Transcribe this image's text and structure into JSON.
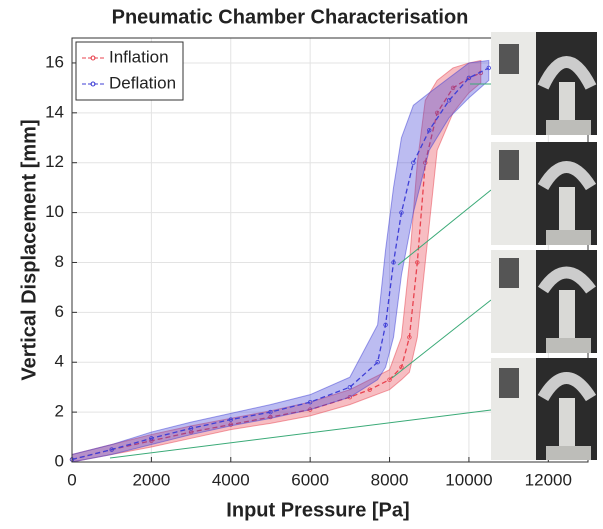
{
  "chart_data": {
    "type": "line",
    "title": "Pneumatic Chamber Characterisation",
    "x_label": "Input Pressure [Pa]",
    "y_label": "Vertical Displacement [mm]",
    "xlim": [
      0,
      13000
    ],
    "xticks": [
      0,
      2000,
      4000,
      6000,
      8000,
      10000,
      12000
    ],
    "ylim": [
      0,
      17
    ],
    "yticks": [
      0,
      2,
      4,
      6,
      8,
      10,
      12,
      14,
      16
    ],
    "grid": true,
    "legend": "upper-left",
    "series": [
      {
        "name": "Inflation",
        "color": "#e8434f",
        "x": [
          0,
          1000,
          2000,
          3000,
          4000,
          5000,
          6000,
          7000,
          7500,
          8000,
          8300,
          8500,
          8700,
          8900,
          9200,
          9600,
          10000,
          10300
        ],
        "values": [
          0.1,
          0.5,
          0.85,
          1.2,
          1.5,
          1.8,
          2.1,
          2.6,
          2.9,
          3.3,
          3.8,
          5,
          8,
          12,
          14,
          15,
          15.4,
          15.6
        ],
        "lower": [
          0,
          0.3,
          0.6,
          0.95,
          1.3,
          1.55,
          1.85,
          2.3,
          2.6,
          2.9,
          3.3,
          3.6,
          5,
          8,
          12.5,
          14,
          14.8,
          15.2
        ],
        "upper": [
          0.3,
          0.7,
          1.1,
          1.45,
          1.75,
          2.05,
          2.4,
          2.9,
          3.3,
          3.7,
          5,
          8,
          12,
          14.5,
          15.3,
          15.8,
          16,
          16.1
        ]
      },
      {
        "name": "Deflation",
        "color": "#3f3fd6",
        "x": [
          0,
          1000,
          2000,
          3000,
          4000,
          5000,
          6000,
          7000,
          7700,
          7900,
          8100,
          8300,
          8600,
          9000,
          9500,
          10000,
          10500
        ],
        "values": [
          0.1,
          0.5,
          0.95,
          1.35,
          1.7,
          2.0,
          2.4,
          3.0,
          4.0,
          5.5,
          8,
          10,
          12,
          13.3,
          14.5,
          15.4,
          15.8
        ],
        "lower": [
          0,
          0.3,
          0.7,
          1.1,
          1.45,
          1.75,
          2.1,
          2.6,
          3.3,
          3.8,
          5,
          7.5,
          10,
          12.5,
          13.8,
          14.6,
          15.3
        ],
        "upper": [
          0.3,
          0.7,
          1.2,
          1.6,
          1.95,
          2.3,
          2.7,
          3.4,
          5.5,
          8.5,
          11,
          13,
          14.3,
          14.8,
          15.4,
          16,
          16.1
        ]
      }
    ]
  }
}
